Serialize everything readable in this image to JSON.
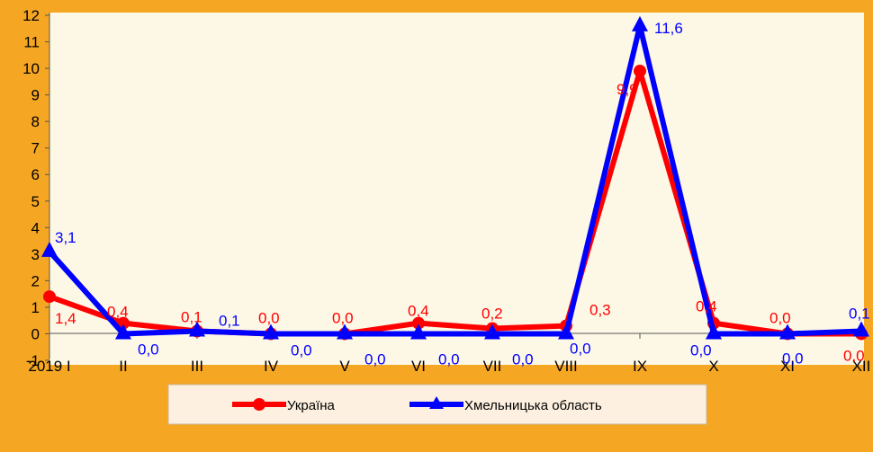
{
  "chart_data": {
    "type": "line",
    "categories": [
      "2019 I",
      "II",
      "III",
      "IV",
      "V",
      "VI",
      "VII",
      "VIII",
      "IX",
      "X",
      "XI",
      "XII"
    ],
    "ylim": [
      -1,
      12
    ],
    "yticks": [
      -1,
      0,
      1,
      2,
      3,
      4,
      5,
      6,
      7,
      8,
      9,
      10,
      11,
      12
    ],
    "grid": false,
    "legend_position": "bottom",
    "series": [
      {
        "name": "Україна",
        "color": "#ff0000",
        "marker": "circle",
        "values": [
          1.4,
          0.4,
          0.1,
          0.0,
          0.0,
          0.4,
          0.2,
          0.3,
          9.9,
          0.4,
          0.0,
          0.0
        ],
        "labels": [
          "1,4",
          "0,4",
          "0,1",
          "0,0",
          "0,0",
          "0,4",
          "0,2",
          "0,3",
          "9,9",
          "0,4",
          "0,0",
          "0,0"
        ]
      },
      {
        "name": "Хмельницька область",
        "color": "#0000ff",
        "marker": "triangle",
        "values": [
          3.1,
          0.0,
          0.1,
          0.0,
          0.0,
          0.0,
          0.0,
          0.0,
          11.6,
          0.0,
          0.0,
          0.1
        ],
        "labels": [
          "3,1",
          "0,0",
          "0,1",
          "0,0",
          "0,0",
          "0,0",
          "0,0",
          "0,0",
          "11,6",
          "0,0",
          "0,0",
          "0,1"
        ]
      }
    ]
  },
  "colors": {
    "background": "#f5a623",
    "plot_area": "#fdf8e6",
    "legend_bg": "#fdf0e0"
  }
}
